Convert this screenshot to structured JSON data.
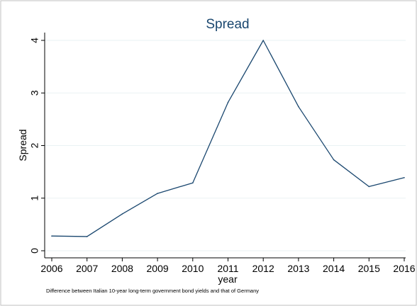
{
  "chart_data": {
    "type": "line",
    "title": "Spread",
    "xlabel": "year",
    "ylabel": "Spread",
    "note": "Difference between Italian 10-year long-term government bond yields and that of Germany",
    "x": [
      2006,
      2007,
      2008,
      2009,
      2010,
      2011,
      2012,
      2013,
      2014,
      2015,
      2016
    ],
    "series": [
      {
        "values": [
          0.28,
          0.27,
          0.7,
          1.09,
          1.29,
          2.82,
          4.0,
          2.74,
          1.73,
          1.22,
          1.39
        ]
      }
    ],
    "xlim": [
      2006,
      2016
    ],
    "ylim": [
      0,
      4
    ],
    "x_ticks": [
      "2006",
      "2007",
      "2008",
      "2009",
      "2010",
      "2011",
      "2012",
      "2013",
      "2014",
      "2015",
      "2016"
    ],
    "y_ticks": [
      "0",
      "1",
      "2",
      "3",
      "4"
    ],
    "grid": "horizontal",
    "line_color": "#1a476f",
    "grid_color": "#eaf2f3",
    "frame_color": "#c0c0c0"
  }
}
